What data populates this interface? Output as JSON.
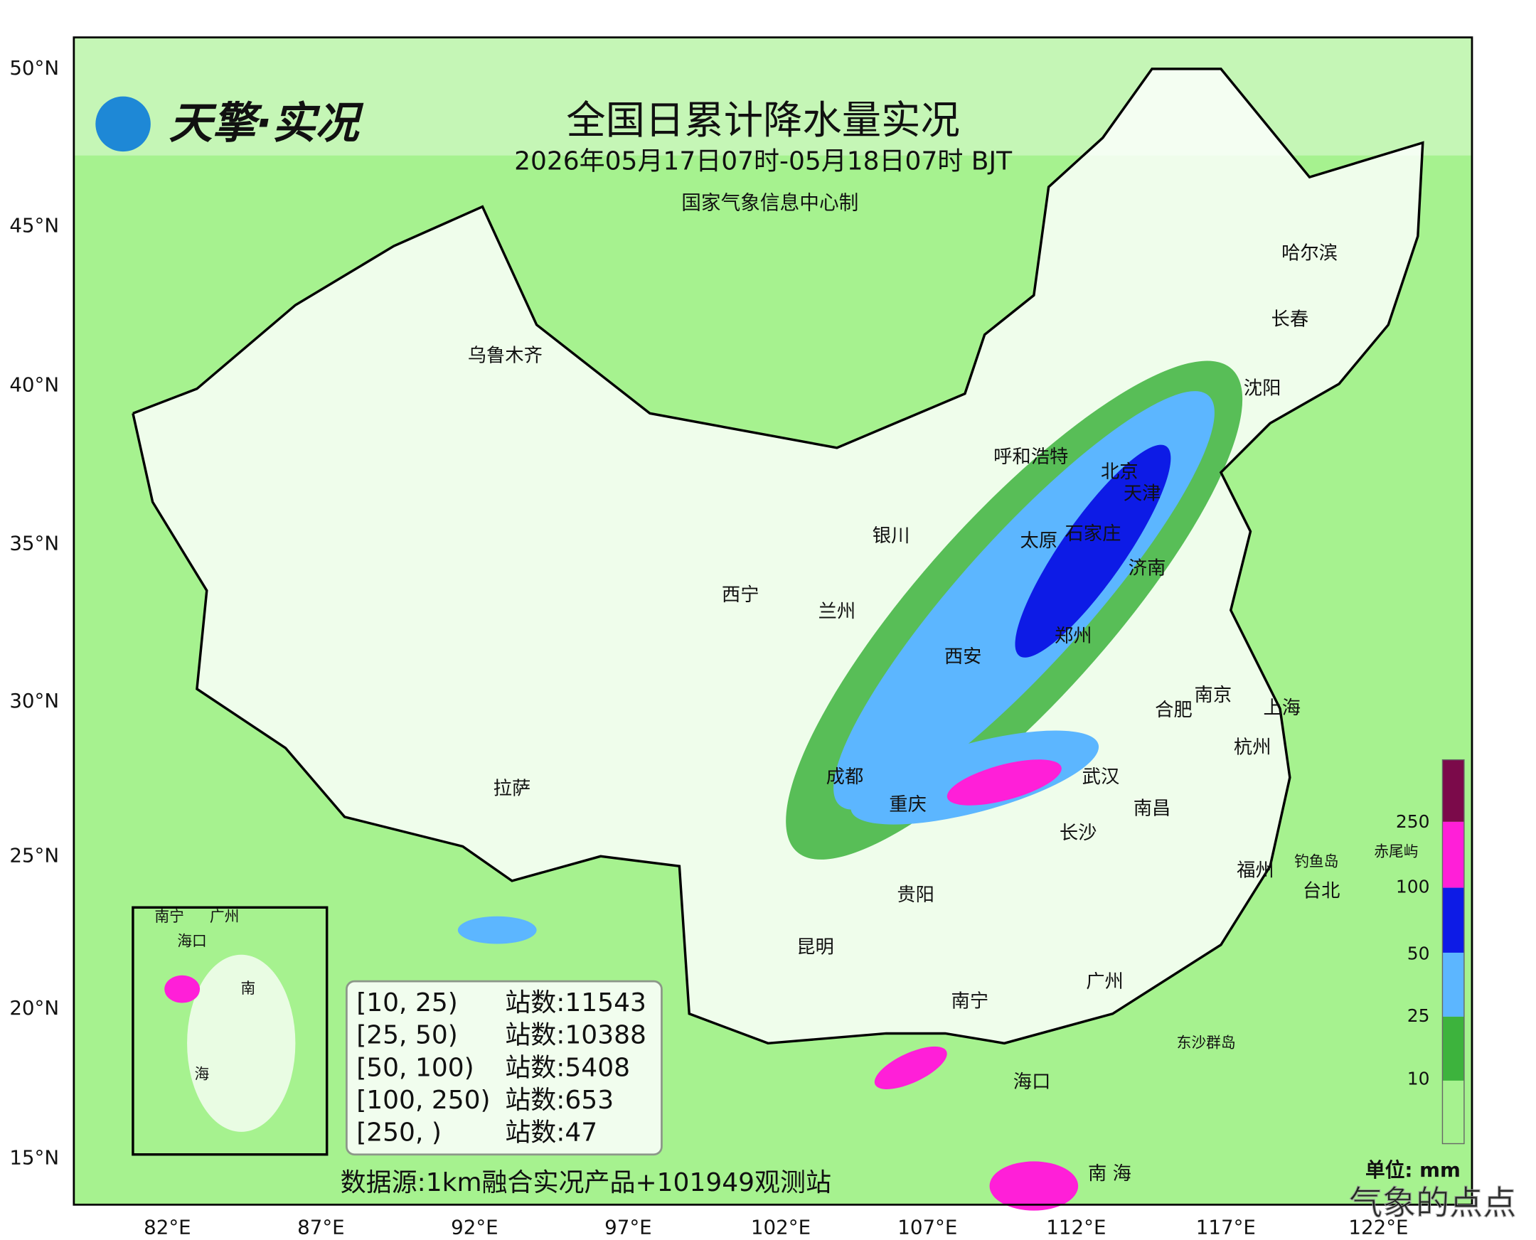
{
  "header": {
    "logo": "天擎·实况",
    "title": "全国日累计降水量实况",
    "subtitle": "2026年05月17日07时-05月18日07时 BJT",
    "producer": "国家气象信息中心制"
  },
  "axes": {
    "lat_labels": [
      "50°N",
      "45°N",
      "40°N",
      "35°N",
      "30°N",
      "25°N",
      "20°N",
      "15°N"
    ],
    "lon_labels": [
      "82°E",
      "87°E",
      "92°E",
      "97°E",
      "102°E",
      "107°E",
      "112°E",
      "117°E",
      "122°E"
    ]
  },
  "cities": [
    "乌鲁木齐",
    "哈尔滨",
    "长春",
    "沈阳",
    "呼和浩特",
    "北京",
    "天津",
    "银川",
    "太原",
    "石家庄",
    "济南",
    "西宁",
    "兰州",
    "郑州",
    "西安",
    "南京",
    "合肥",
    "上海",
    "杭州",
    "成都",
    "武汉",
    "拉萨",
    "重庆",
    "南昌",
    "长沙",
    "福州",
    "钓鱼岛",
    "赤尾屿",
    "台北",
    "贵阳",
    "昆明",
    "广州",
    "南宁",
    "东沙群岛",
    "海口",
    "南 海"
  ],
  "inset": {
    "labels": [
      "南宁",
      "广州",
      "海口",
      "南",
      "海"
    ]
  },
  "stats": {
    "rows": [
      [
        "[10, 25)",
        "站数:11543"
      ],
      [
        "[25, 50)",
        "站数:10388"
      ],
      [
        "[50, 100)",
        "站数:5408"
      ],
      [
        "[100, 250)",
        "站数:653"
      ],
      [
        "[250, )",
        "站数:47"
      ]
    ]
  },
  "source": "数据源:1km融合实况产品+101949观测站",
  "legend": {
    "ticks": [
      "250",
      "100",
      "50",
      "25",
      "10"
    ],
    "unit": "单位: mm"
  },
  "watermark": "气象的点点"
}
